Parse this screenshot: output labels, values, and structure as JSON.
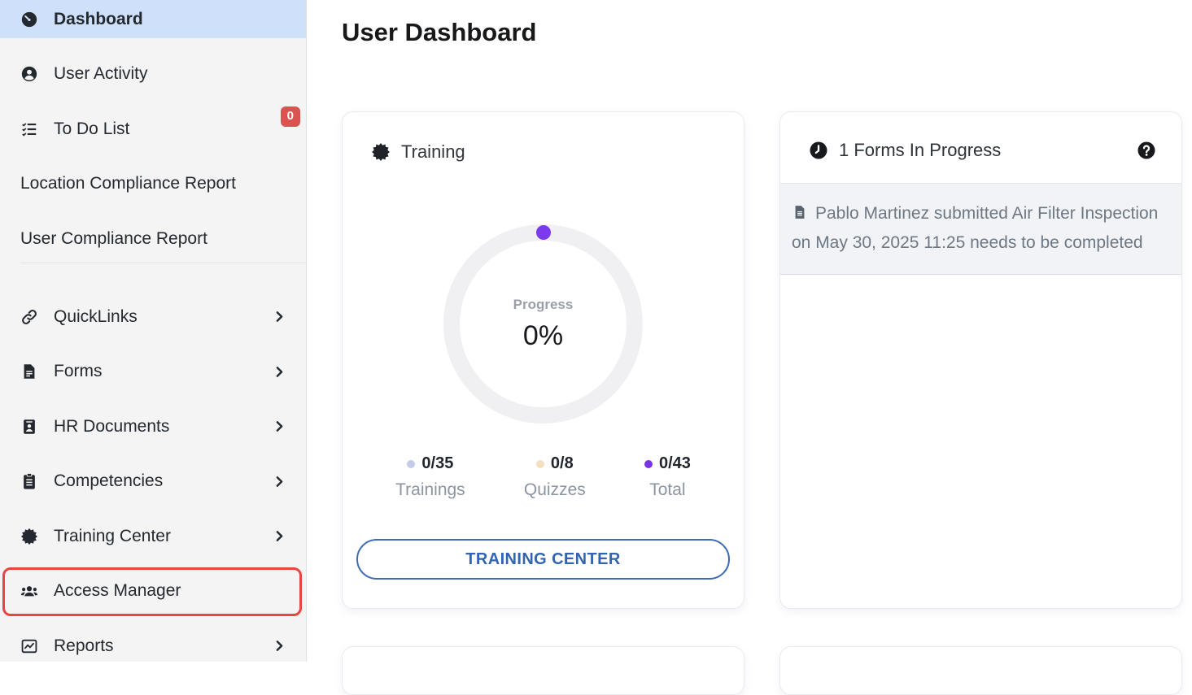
{
  "app": {
    "title": "User Dashboard"
  },
  "colors": {
    "sidebar_bg": "#f4f4f4",
    "active_item_bg": "#cfe0fa",
    "badge_red": "#d9534f",
    "annotation_red": "#e8463c",
    "button_blue": "#3264b0",
    "progress_purple": "#7c3aed"
  },
  "sidebar": {
    "items": [
      {
        "label": "Dashboard",
        "icon": "tachometer-icon",
        "active": true
      },
      {
        "label": "User Activity",
        "icon": "user-circle-icon"
      },
      {
        "label": "To Do List",
        "icon": "list-check-icon",
        "badge": "0"
      },
      {
        "label": "Location Compliance Report"
      },
      {
        "label": "User Compliance Report",
        "divider_after": true
      },
      {
        "label": "QuickLinks",
        "icon": "link-icon",
        "chevron": true
      },
      {
        "label": "Forms",
        "icon": "file-text-icon",
        "chevron": true
      },
      {
        "label": "HR Documents",
        "icon": "id-card-icon",
        "chevron": true
      },
      {
        "label": "Competencies",
        "icon": "clipboard-icon",
        "chevron": true
      },
      {
        "label": "Training Center",
        "icon": "seal-icon",
        "chevron": true
      },
      {
        "label": "Access Manager",
        "icon": "users-icon",
        "highlighted": true
      },
      {
        "label": "Reports",
        "icon": "chart-line-icon",
        "chevron": true
      }
    ]
  },
  "main": {
    "heading": "User Dashboard",
    "training_card": {
      "icon": "seal-icon",
      "title": "Training",
      "progress_label": "Progress",
      "progress_value": "0%",
      "stats": [
        {
          "value": "0/35",
          "label": "Trainings",
          "dot_color": "#c3cce8"
        },
        {
          "value": "0/8",
          "label": "Quizzes",
          "dot_color": "#f2dfc0"
        },
        {
          "value": "0/43",
          "label": "Total",
          "dot_color": "#7733e6"
        }
      ],
      "button_label": "TRAINING CENTER"
    },
    "forms_card": {
      "icon": "clock-icon",
      "title": "1 Forms In Progress",
      "help_icon": "question-circle-icon",
      "items": [
        {
          "icon": "file-icon",
          "text": "Pablo Martinez submitted Air Filter Inspection on May 30, 2025 11:25 needs to be completed"
        }
      ]
    }
  }
}
